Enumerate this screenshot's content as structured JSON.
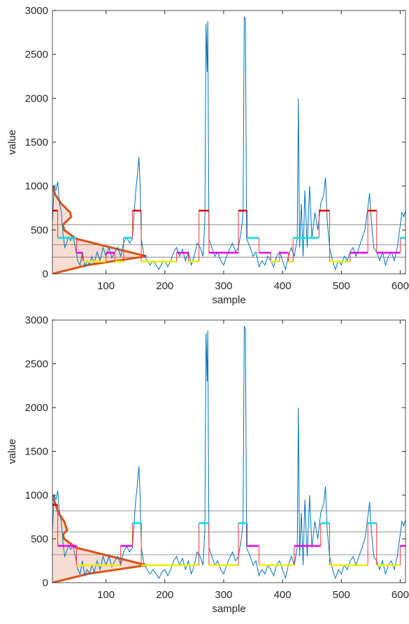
{
  "chart_data": [
    {
      "type": "line",
      "xlabel": "sample",
      "ylabel": "value",
      "xlim": [
        9,
        609
      ],
      "ylim": [
        0,
        3000
      ],
      "xticks": [
        100,
        200,
        300,
        400,
        500,
        600
      ],
      "yticks": [
        0,
        500,
        1000,
        1500,
        2000,
        2500,
        3000
      ],
      "series": [
        {
          "color": "#0072bd",
          "x": [
            9,
            12,
            15,
            18,
            21,
            24,
            27,
            30,
            33,
            36,
            40,
            44,
            48,
            52,
            56,
            60,
            64,
            68,
            72,
            76,
            80,
            85,
            90,
            95,
            100,
            105,
            110,
            115,
            120,
            125,
            130,
            135,
            140,
            145,
            150,
            153,
            156,
            158,
            160,
            165,
            170,
            175,
            180,
            185,
            190,
            195,
            200,
            205,
            210,
            215,
            220,
            225,
            230,
            235,
            240,
            245,
            250,
            255,
            260,
            265,
            268,
            270,
            272,
            273,
            275,
            280,
            285,
            290,
            295,
            300,
            305,
            310,
            315,
            320,
            325,
            330,
            333,
            335,
            337,
            339,
            345,
            350,
            355,
            360,
            365,
            370,
            375,
            380,
            385,
            390,
            395,
            400,
            405,
            410,
            415,
            420,
            425,
            427,
            429,
            432,
            435,
            438,
            442,
            446,
            450,
            455,
            460,
            465,
            470,
            473,
            476,
            480,
            485,
            490,
            495,
            500,
            505,
            510,
            515,
            520,
            525,
            530,
            535,
            540,
            545,
            548,
            551,
            555,
            560,
            565,
            570,
            575,
            580,
            585,
            590,
            595,
            600,
            603,
            606,
            609
          ],
          "values": [
            600,
            1000,
            950,
            1050,
            800,
            700,
            450,
            300,
            350,
            420,
            380,
            420,
            300,
            150,
            100,
            250,
            80,
            150,
            100,
            200,
            120,
            250,
            150,
            300,
            200,
            300,
            180,
            250,
            300,
            200,
            350,
            420,
            350,
            400,
            900,
            1100,
            1330,
            1000,
            400,
            200,
            150,
            100,
            150,
            100,
            50,
            120,
            150,
            80,
            150,
            250,
            300,
            200,
            280,
            150,
            250,
            100,
            200,
            350,
            300,
            200,
            600,
            2850,
            2300,
            2880,
            400,
            300,
            200,
            250,
            150,
            100,
            200,
            280,
            350,
            250,
            300,
            500,
            700,
            2930,
            2900,
            400,
            300,
            200,
            250,
            80,
            150,
            100,
            200,
            150,
            80,
            200,
            250,
            150,
            50,
            200,
            300,
            200,
            400,
            2000,
            300,
            800,
            200,
            950,
            300,
            1000,
            400,
            700,
            500,
            800,
            900,
            1100,
            600,
            300,
            150,
            50,
            150,
            100,
            200,
            150,
            250,
            300,
            200,
            300,
            400,
            500,
            750,
            920,
            600,
            300,
            250,
            150,
            250,
            100,
            200,
            250,
            150,
            300,
            550,
            700,
            650,
            720
          ]
        }
      ],
      "levels": [
        {
          "x": [
            9,
            18
          ],
          "value": 720,
          "color": "#e00000"
        },
        {
          "x": [
            18,
            35
          ],
          "value": 410,
          "color": "#00e0f0"
        },
        {
          "x": [
            35,
            50
          ],
          "value": 410,
          "color": "#00e0f0"
        },
        {
          "x": [
            50,
            60
          ],
          "value": 240,
          "color": "#f000f0"
        },
        {
          "x": [
            60,
            100
          ],
          "value": 140,
          "color": "#f0f000"
        },
        {
          "x": [
            100,
            115
          ],
          "value": 240,
          "color": "#f000f0"
        },
        {
          "x": [
            115,
            130
          ],
          "value": 140,
          "color": "#f0f000"
        },
        {
          "x": [
            130,
            145
          ],
          "value": 410,
          "color": "#00e0f0"
        },
        {
          "x": [
            145,
            160
          ],
          "value": 720,
          "color": "#e00000"
        },
        {
          "x": [
            160,
            220
          ],
          "value": 140,
          "color": "#f0f000"
        },
        {
          "x": [
            220,
            240
          ],
          "value": 240,
          "color": "#f000f0"
        },
        {
          "x": [
            240,
            258
          ],
          "value": 140,
          "color": "#f0f000"
        },
        {
          "x": [
            258,
            275
          ],
          "value": 720,
          "color": "#e00000"
        },
        {
          "x": [
            275,
            325
          ],
          "value": 240,
          "color": "#f000f0"
        },
        {
          "x": [
            325,
            340
          ],
          "value": 720,
          "color": "#e00000"
        },
        {
          "x": [
            340,
            360
          ],
          "value": 410,
          "color": "#00e0f0"
        },
        {
          "x": [
            360,
            380
          ],
          "value": 240,
          "color": "#f000f0"
        },
        {
          "x": [
            380,
            395
          ],
          "value": 140,
          "color": "#f0f000"
        },
        {
          "x": [
            395,
            410
          ],
          "value": 240,
          "color": "#f000f0"
        },
        {
          "x": [
            410,
            418
          ],
          "value": 140,
          "color": "#f0f000"
        },
        {
          "x": [
            418,
            462
          ],
          "value": 410,
          "color": "#00e0f0"
        },
        {
          "x": [
            462,
            480
          ],
          "value": 720,
          "color": "#e00000"
        },
        {
          "x": [
            480,
            515
          ],
          "value": 140,
          "color": "#f0f000"
        },
        {
          "x": [
            515,
            545
          ],
          "value": 240,
          "color": "#f000f0"
        },
        {
          "x": [
            545,
            560
          ],
          "value": 720,
          "color": "#e00000"
        },
        {
          "x": [
            560,
            600
          ],
          "value": 240,
          "color": "#f000f0"
        },
        {
          "x": [
            600,
            609
          ],
          "value": 410,
          "color": "#00e0f0"
        }
      ],
      "hlines": [
        190,
        330,
        560
      ],
      "density": {
        "color": "#d95319",
        "x": [
          0,
          60,
          160,
          100,
          40,
          20,
          18,
          32,
          30,
          15,
          5,
          0
        ],
        "y": [
          0,
          100,
          200,
          300,
          400,
          500,
          560,
          650,
          700,
          800,
          900,
          1000
        ]
      }
    },
    {
      "type": "line",
      "xlabel": "sample",
      "ylabel": "value",
      "xlim": [
        9,
        609
      ],
      "ylim": [
        0,
        3000
      ],
      "xticks": [
        100,
        200,
        300,
        400,
        500,
        600
      ],
      "yticks": [
        0,
        500,
        1000,
        1500,
        2000,
        2500,
        3000
      ],
      "series": [
        {
          "color": "#0072bd",
          "x": [
            9,
            12,
            15,
            18,
            21,
            24,
            27,
            30,
            33,
            36,
            40,
            44,
            48,
            52,
            56,
            60,
            64,
            68,
            72,
            76,
            80,
            85,
            90,
            95,
            100,
            105,
            110,
            115,
            120,
            125,
            130,
            135,
            140,
            145,
            150,
            153,
            156,
            158,
            160,
            165,
            170,
            175,
            180,
            185,
            190,
            195,
            200,
            205,
            210,
            215,
            220,
            225,
            230,
            235,
            240,
            245,
            250,
            255,
            260,
            265,
            268,
            270,
            272,
            273,
            275,
            280,
            285,
            290,
            295,
            300,
            305,
            310,
            315,
            320,
            325,
            330,
            333,
            335,
            337,
            339,
            345,
            350,
            355,
            360,
            365,
            370,
            375,
            380,
            385,
            390,
            395,
            400,
            405,
            410,
            415,
            420,
            425,
            427,
            429,
            432,
            435,
            438,
            442,
            446,
            450,
            455,
            460,
            465,
            470,
            473,
            476,
            480,
            485,
            490,
            495,
            500,
            505,
            510,
            515,
            520,
            525,
            530,
            535,
            540,
            545,
            548,
            551,
            555,
            560,
            565,
            570,
            575,
            580,
            585,
            590,
            595,
            600,
            603,
            606,
            609
          ],
          "values": [
            600,
            1000,
            950,
            1050,
            800,
            700,
            450,
            300,
            350,
            420,
            380,
            420,
            300,
            150,
            100,
            250,
            80,
            150,
            100,
            200,
            120,
            250,
            150,
            300,
            200,
            300,
            180,
            250,
            300,
            200,
            350,
            420,
            350,
            400,
            900,
            1100,
            1330,
            1000,
            400,
            200,
            150,
            100,
            150,
            100,
            50,
            120,
            150,
            80,
            150,
            250,
            300,
            200,
            280,
            150,
            250,
            100,
            200,
            350,
            300,
            200,
            600,
            2850,
            2300,
            2880,
            400,
            300,
            200,
            250,
            150,
            100,
            200,
            280,
            350,
            250,
            300,
            500,
            700,
            2930,
            2900,
            400,
            300,
            200,
            250,
            80,
            150,
            100,
            200,
            150,
            80,
            200,
            250,
            150,
            50,
            200,
            300,
            200,
            400,
            2000,
            300,
            800,
            200,
            950,
            300,
            1000,
            400,
            700,
            500,
            800,
            900,
            1100,
            600,
            300,
            150,
            50,
            150,
            100,
            200,
            150,
            250,
            300,
            200,
            300,
            400,
            500,
            750,
            920,
            600,
            300,
            250,
            150,
            250,
            100,
            200,
            250,
            150,
            300,
            550,
            700,
            650,
            720
          ]
        }
      ],
      "levels": [
        {
          "x": [
            9,
            18
          ],
          "value": 890,
          "color": "#e00000"
        },
        {
          "x": [
            18,
            50
          ],
          "value": 420,
          "color": "#f000f0"
        },
        {
          "x": [
            50,
            125
          ],
          "value": 200,
          "color": "#f0f000"
        },
        {
          "x": [
            125,
            145
          ],
          "value": 420,
          "color": "#f000f0"
        },
        {
          "x": [
            145,
            160
          ],
          "value": 680,
          "color": "#00e0f0"
        },
        {
          "x": [
            160,
            258
          ],
          "value": 200,
          "color": "#f0f000"
        },
        {
          "x": [
            258,
            275
          ],
          "value": 680,
          "color": "#00e0f0"
        },
        {
          "x": [
            275,
            325
          ],
          "value": 200,
          "color": "#f0f000"
        },
        {
          "x": [
            325,
            340
          ],
          "value": 680,
          "color": "#00e0f0"
        },
        {
          "x": [
            340,
            360
          ],
          "value": 420,
          "color": "#f000f0"
        },
        {
          "x": [
            360,
            420
          ],
          "value": 200,
          "color": "#f0f000"
        },
        {
          "x": [
            420,
            465
          ],
          "value": 420,
          "color": "#f000f0"
        },
        {
          "x": [
            465,
            480
          ],
          "value": 680,
          "color": "#00e0f0"
        },
        {
          "x": [
            480,
            545
          ],
          "value": 200,
          "color": "#f0f000"
        },
        {
          "x": [
            545,
            560
          ],
          "value": 680,
          "color": "#00e0f0"
        },
        {
          "x": [
            560,
            600
          ],
          "value": 200,
          "color": "#f0f000"
        },
        {
          "x": [
            600,
            609
          ],
          "value": 420,
          "color": "#f000f0"
        }
      ],
      "hlines": [
        320,
        580,
        820
      ],
      "density": {
        "color": "#d95319",
        "x": [
          0,
          60,
          160,
          100,
          40,
          20,
          18,
          25,
          20,
          10,
          5,
          0
        ],
        "y": [
          0,
          100,
          200,
          300,
          400,
          500,
          550,
          600,
          700,
          800,
          900,
          1000
        ]
      }
    }
  ]
}
